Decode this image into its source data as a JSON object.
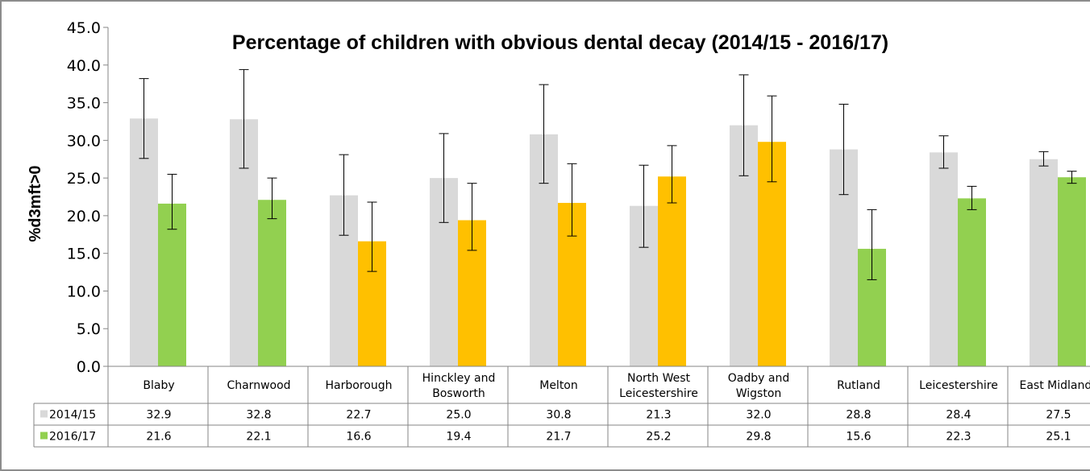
{
  "chart_data": {
    "type": "bar",
    "title": "Percentage of children with obvious dental decay (2014/15 - 2016/17)",
    "ylabel": "%d3mft>0",
    "xlabel": "",
    "ylim": [
      0,
      45
    ],
    "yticks": [
      "0.0",
      "5.0",
      "10.0",
      "15.0",
      "20.0",
      "25.0",
      "30.0",
      "35.0",
      "40.0",
      "45.0"
    ],
    "grid": false,
    "legend": "data-table",
    "categories": [
      [
        "Blaby"
      ],
      [
        "Charnwood"
      ],
      [
        "Harborough"
      ],
      [
        "Hinckley and",
        "Bosworth"
      ],
      [
        "Melton"
      ],
      [
        "North West",
        "Leicestershire"
      ],
      [
        "Oadby and",
        "Wigston"
      ],
      [
        "Rutland"
      ],
      [
        "Leicestershire"
      ],
      [
        "East Midlands"
      ]
    ],
    "series": [
      {
        "name": "2014/15",
        "color": "#d9d9d9",
        "values": [
          32.9,
          32.8,
          22.7,
          25.0,
          30.8,
          21.3,
          32.0,
          28.8,
          28.4,
          27.5
        ],
        "labels": [
          "32.9",
          "32.8",
          "22.7",
          "25.0",
          "30.8",
          "21.3",
          "32.0",
          "28.8",
          "28.4",
          "27.5"
        ],
        "err_low": [
          27.6,
          26.3,
          17.4,
          19.1,
          24.3,
          15.8,
          25.3,
          22.8,
          26.3,
          26.6
        ],
        "err_high": [
          38.2,
          39.4,
          28.1,
          30.9,
          37.4,
          26.7,
          38.7,
          34.8,
          30.6,
          28.5
        ]
      },
      {
        "name": "2016/17",
        "values": [
          21.6,
          22.1,
          16.6,
          19.4,
          21.7,
          25.2,
          29.8,
          15.6,
          22.3,
          25.1
        ],
        "labels": [
          "21.6",
          "22.1",
          "16.6",
          "19.4",
          "21.7",
          "25.2",
          "29.8",
          "15.6",
          "22.3",
          "25.1"
        ],
        "colors": [
          "#92d050",
          "#92d050",
          "#ffc000",
          "#ffc000",
          "#ffc000",
          "#ffc000",
          "#ffc000",
          "#92d050",
          "#92d050",
          "#92d050"
        ],
        "legend_color": "#92d050",
        "err_low": [
          18.2,
          19.6,
          12.6,
          15.4,
          17.3,
          21.7,
          24.5,
          11.5,
          20.8,
          24.3
        ],
        "err_high": [
          25.5,
          25.0,
          21.8,
          24.3,
          26.9,
          29.3,
          35.9,
          20.8,
          23.9,
          25.9
        ]
      }
    ]
  }
}
